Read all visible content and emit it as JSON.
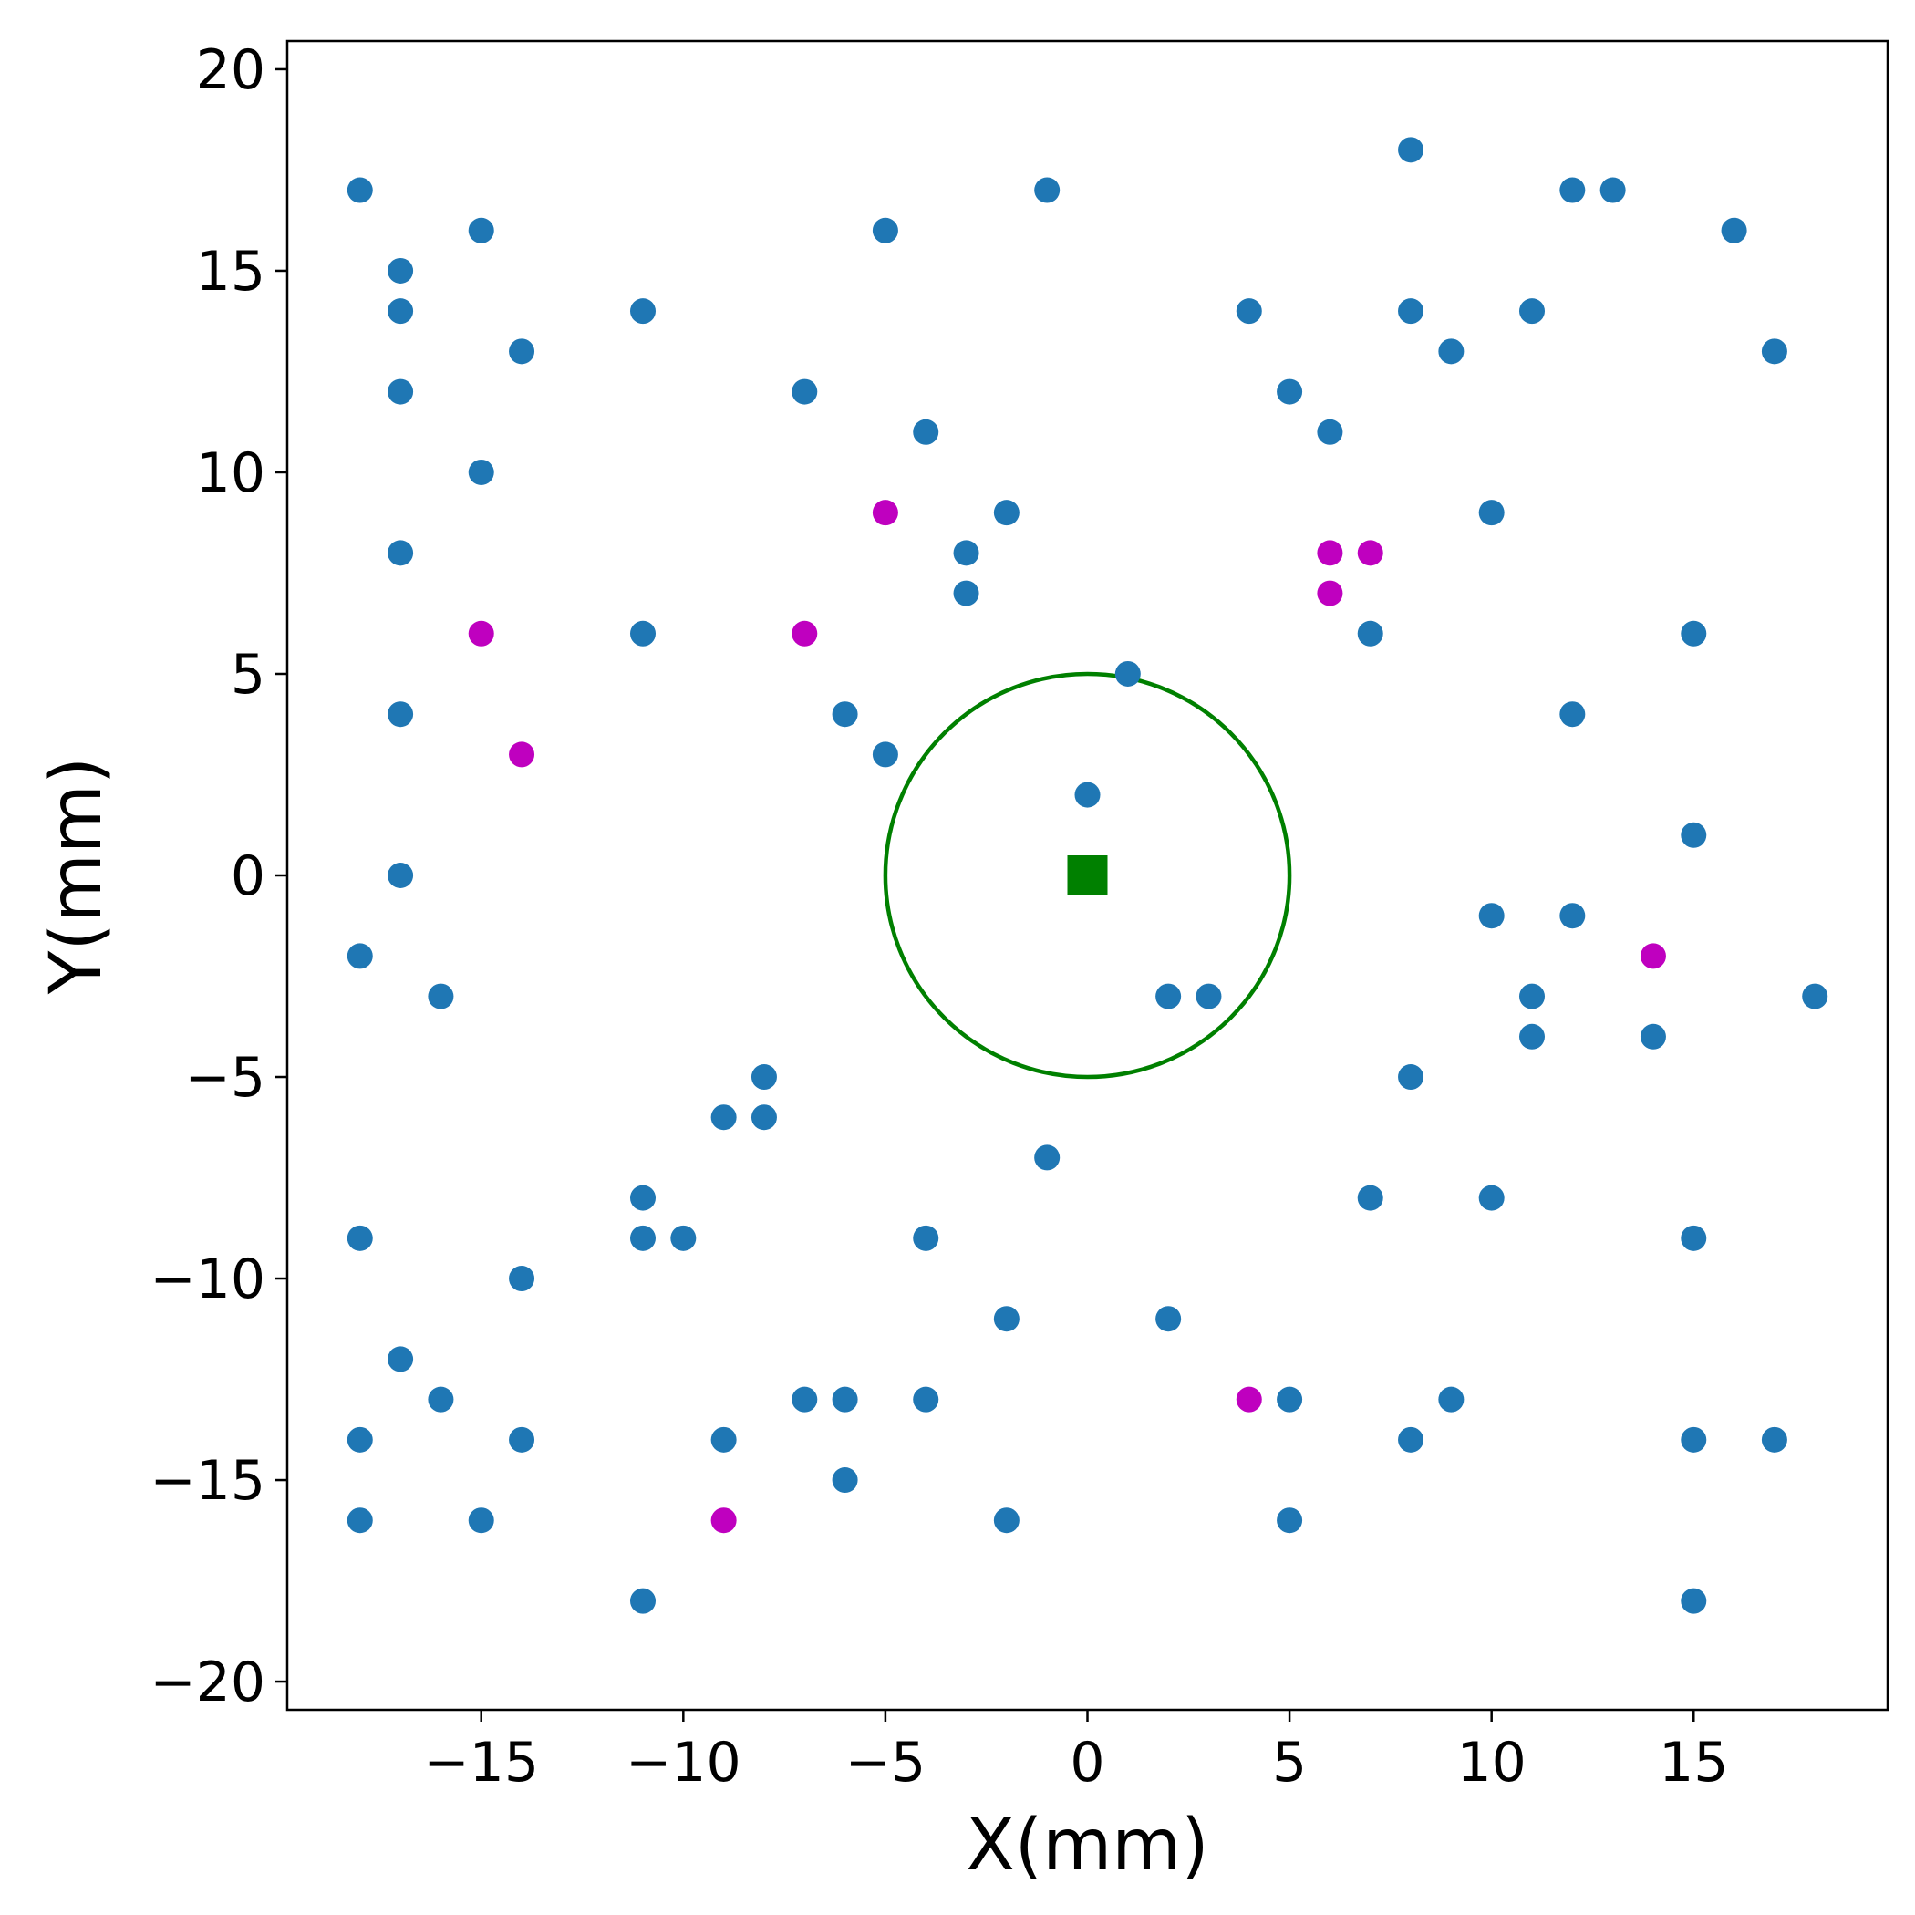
{
  "chart_data": {
    "type": "scatter",
    "title": "",
    "xlabel": "X(mm)",
    "ylabel": "Y(mm)",
    "xlim": [
      -19.8,
      19.8
    ],
    "ylim": [
      -20.7,
      20.7
    ],
    "xticks": [
      -15,
      -10,
      -5,
      0,
      5,
      10,
      15
    ],
    "yticks": [
      -20,
      -15,
      -10,
      -5,
      0,
      5,
      10,
      15,
      20
    ],
    "xtick_labels": [
      "−15",
      "−10",
      "−5",
      "0",
      "5",
      "10",
      "15"
    ],
    "ytick_labels": [
      "−20",
      "−15",
      "−10",
      "−5",
      "0",
      "5",
      "10",
      "15",
      "20"
    ],
    "grid": false,
    "legend": "none",
    "colors": {
      "blue": "#1f77b4",
      "magenta": "#bf00bf",
      "green": "#008000"
    },
    "series": [
      {
        "color": "#1f77b4",
        "marker": "circle",
        "points": [
          [
            -18,
            17
          ],
          [
            -17,
            15
          ],
          [
            -17,
            14
          ],
          [
            -17,
            12
          ],
          [
            -17,
            8
          ],
          [
            -17,
            4
          ],
          [
            -17,
            0
          ],
          [
            -18,
            -2
          ],
          [
            -16,
            -3
          ],
          [
            -18,
            -9
          ],
          [
            -17,
            -12
          ],
          [
            -16,
            -13
          ],
          [
            -18,
            -14
          ],
          [
            -18,
            -16
          ],
          [
            -15,
            16
          ],
          [
            -15,
            10
          ],
          [
            -14,
            13
          ],
          [
            -14,
            -10
          ],
          [
            -14,
            -14
          ],
          [
            -15,
            -16
          ],
          [
            -11,
            14
          ],
          [
            -11,
            6
          ],
          [
            -11,
            -8
          ],
          [
            -11,
            -9
          ],
          [
            -10,
            -9
          ],
          [
            -11,
            -18
          ],
          [
            -9,
            -6
          ],
          [
            -8,
            -5
          ],
          [
            -8,
            -6
          ],
          [
            -9,
            -14
          ],
          [
            -7,
            12
          ],
          [
            -6,
            4
          ],
          [
            -5,
            16
          ],
          [
            -5,
            3
          ],
          [
            -4,
            11
          ],
          [
            -7,
            -13
          ],
          [
            -6,
            -13
          ],
          [
            -6,
            -15
          ],
          [
            -4,
            -9
          ],
          [
            -4,
            -13
          ],
          [
            -3,
            8
          ],
          [
            -3,
            7
          ],
          [
            -2,
            9
          ],
          [
            -1,
            17
          ],
          [
            0,
            2
          ],
          [
            1,
            5
          ],
          [
            2,
            -3
          ],
          [
            3,
            -3
          ],
          [
            -1,
            -7
          ],
          [
            -2,
            -11
          ],
          [
            -2,
            -16
          ],
          [
            2,
            -11
          ],
          [
            4,
            14
          ],
          [
            5,
            12
          ],
          [
            6,
            11
          ],
          [
            7,
            6
          ],
          [
            5,
            -13
          ],
          [
            5,
            -16
          ],
          [
            7,
            -8
          ],
          [
            8,
            -5
          ],
          [
            8,
            -14
          ],
          [
            9,
            -13
          ],
          [
            8,
            18
          ],
          [
            8,
            14
          ],
          [
            9,
            13
          ],
          [
            11,
            14
          ],
          [
            10,
            9
          ],
          [
            12,
            17
          ],
          [
            13,
            17
          ],
          [
            12,
            4
          ],
          [
            10,
            -1
          ],
          [
            12,
            -1
          ],
          [
            11,
            -3
          ],
          [
            11,
            -4
          ],
          [
            10,
            -8
          ],
          [
            16,
            16
          ],
          [
            17,
            13
          ],
          [
            15,
            6
          ],
          [
            15,
            1
          ],
          [
            14,
            -4
          ],
          [
            18,
            -3
          ],
          [
            15,
            -9
          ],
          [
            15,
            -14
          ],
          [
            17,
            -14
          ],
          [
            15,
            -18
          ]
        ]
      },
      {
        "color": "#bf00bf",
        "marker": "circle",
        "points": [
          [
            -15,
            6
          ],
          [
            -14,
            3
          ],
          [
            -7,
            6
          ],
          [
            -5,
            9
          ],
          [
            6,
            8
          ],
          [
            7,
            8
          ],
          [
            6,
            7
          ],
          [
            14,
            -2
          ],
          [
            4,
            -13
          ],
          [
            -9,
            -16
          ]
        ]
      }
    ],
    "center_marker": {
      "x": 0,
      "y": 0,
      "shape": "square",
      "color": "#008000"
    },
    "circle": {
      "cx": 0,
      "cy": 0,
      "r": 5,
      "color": "#008000"
    }
  }
}
